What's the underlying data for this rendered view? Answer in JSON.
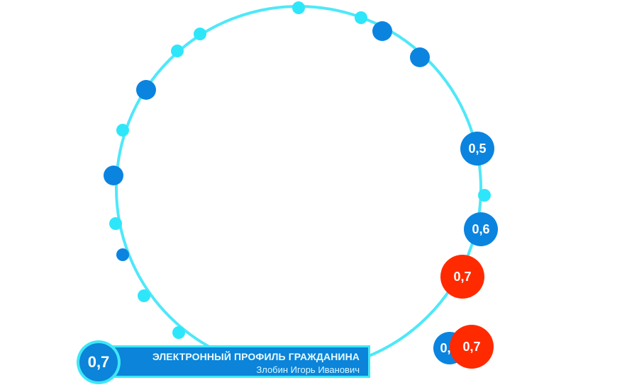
{
  "colors": {
    "ring": "#4ee8f9",
    "light_node": "#2ee6f9",
    "blue_node": "#0b84e0",
    "red_node": "#ff2a00",
    "panel_fill": "#0b84d9",
    "panel_border": "#3fe7f7"
  },
  "profile": {
    "score": "0,7",
    "title": "ЭЛЕКТРОННЫЙ ПРОФИЛЬ ГРАЖДАНИНА",
    "name": "Злобин Игорь Иванович"
  },
  "badges": [
    {
      "id": "badge-1",
      "label": "0,5",
      "color": "blue"
    },
    {
      "id": "badge-2",
      "label": "0,6",
      "color": "blue"
    },
    {
      "id": "badge-3",
      "label": "0,7",
      "color": "red"
    },
    {
      "id": "badge-4",
      "label": "0,",
      "color": "blue"
    },
    {
      "id": "badge-5",
      "label": "0,7",
      "color": "red"
    }
  ]
}
